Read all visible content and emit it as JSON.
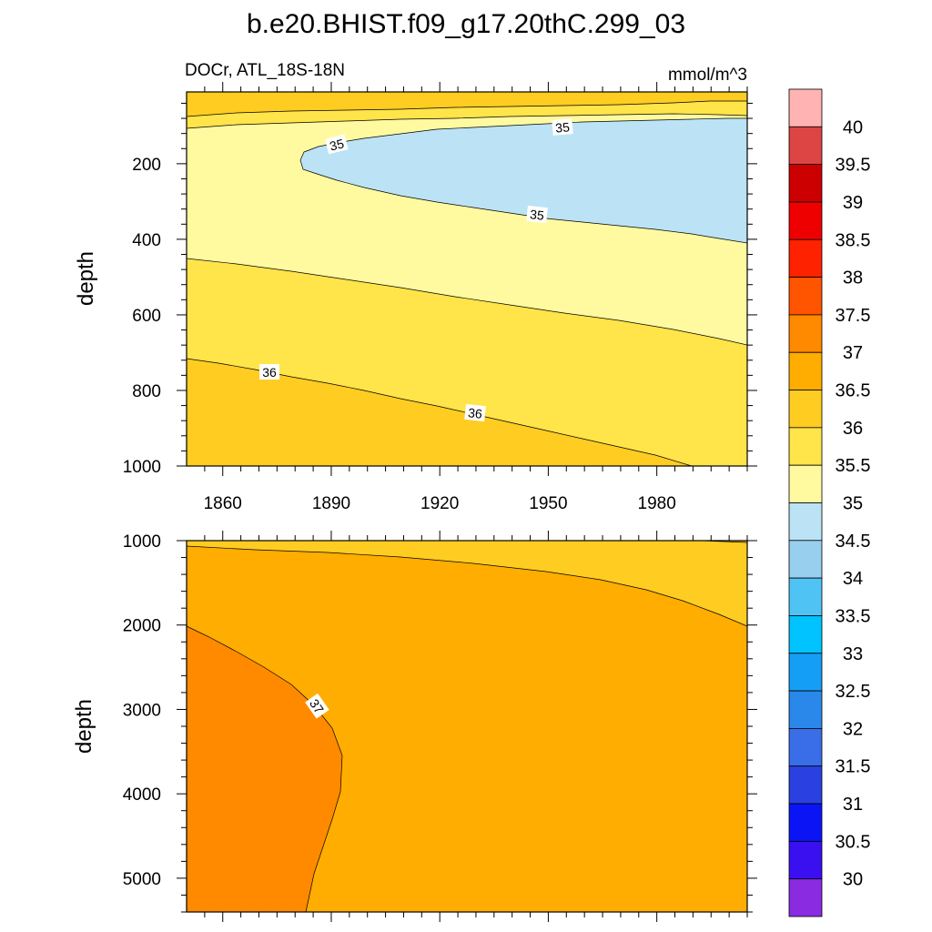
{
  "title": "b.e20.BHIST.f09_g17.20thC.299_03",
  "left_subtitle": "DOCr, ATL_18S-18N",
  "right_subtitle": "mmol/m^3",
  "colorbar": {
    "levels": [
      "30",
      "30.5",
      "31",
      "31.5",
      "32",
      "32.5",
      "33",
      "33.5",
      "34",
      "34.5",
      "35",
      "35.5",
      "36",
      "36.5",
      "37",
      "37.5",
      "38",
      "38.5",
      "39",
      "39.5",
      "40"
    ],
    "colors": [
      "#8a2be2",
      "#3a0ff0",
      "#0a14f5",
      "#2a40e0",
      "#3a6ee8",
      "#2a88ea",
      "#159ef5",
      "#00c3ff",
      "#50c3f5",
      "#98cfee",
      "#bbe3f5",
      "#fff9a0",
      "#ffe44a",
      "#ffcc22",
      "#ffad00",
      "#ff8a00",
      "#ff5500",
      "#ff2200",
      "#ee0000",
      "#cc0000",
      "#dd4444",
      "#ffb3b3"
    ]
  },
  "chart_data": [
    {
      "type": "heatmap",
      "panel": "upper",
      "ylabel": "depth",
      "xlabel": "",
      "x_ticks": [
        "1860",
        "1890",
        "1920",
        "1950",
        "1980"
      ],
      "y_ticks": [
        "200",
        "400",
        "600",
        "800",
        "1000"
      ],
      "xlim": [
        1850,
        2005
      ],
      "ylim": [
        1000,
        10
      ],
      "y_reversed": true,
      "contour_labels": [
        "35",
        "35",
        "35",
        "36",
        "36"
      ],
      "regions": [
        {
          "level_range": "34.5-35",
          "description": "lens from ~1884 at 170 m widening to 70-400 m at 2005"
        },
        {
          "level_range": "35-35.5",
          "description": "band from ~70 m down to 450 m (1850) / 680 m (2005)"
        },
        {
          "level_range": "35.5-36",
          "description": "band down to 710 m (1850) / 1000 m (~1990)"
        },
        {
          "level_range": "36-36.5",
          "description": "deepest region and thin surface layer"
        }
      ]
    },
    {
      "type": "heatmap",
      "panel": "lower",
      "ylabel": "depth",
      "xlabel": "",
      "y_ticks": [
        "1000",
        "2000",
        "3000",
        "4000",
        "5000"
      ],
      "xlim": [
        1850,
        2005
      ],
      "ylim": [
        5400,
        1000
      ],
      "y_reversed": true,
      "contour_labels": [
        "37"
      ],
      "regions": [
        {
          "level_range": "36-36.5",
          "description": "thin top layer thickening to 2000 m at 2005"
        },
        {
          "level_range": "36.5-37",
          "description": "main body"
        },
        {
          "level_range": "37-37.5",
          "description": "deep western lobe from 2000 m, reaching ~1893 at 3600 m"
        }
      ]
    }
  ]
}
